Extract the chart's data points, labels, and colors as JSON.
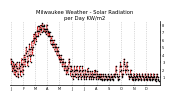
{
  "title": "Milwaukee Weather - Solar Radiation\nper Day KW/m2",
  "title_fontsize": 3.8,
  "bg_color": "#ffffff",
  "line_color": "#cc0000",
  "marker_color": "#000000",
  "grid_color": "#bbbbbb",
  "ylim": [
    0.0,
    8.5
  ],
  "ytick_values": [
    1,
    2,
    3,
    4,
    5,
    6,
    7,
    8
  ],
  "ytick_labels": [
    "1",
    "2",
    "3",
    "4",
    "5",
    "6",
    "7",
    "8"
  ],
  "values": [
    3.5,
    2.8,
    3.2,
    2.5,
    1.8,
    2.2,
    3.0,
    2.5,
    1.5,
    2.0,
    2.8,
    2.0,
    1.2,
    1.8,
    2.5,
    3.0,
    2.2,
    1.5,
    1.0,
    1.5,
    2.2,
    3.0,
    2.5,
    1.8,
    1.2,
    1.8,
    2.8,
    3.5,
    2.8,
    2.0,
    1.5,
    2.5,
    3.5,
    4.0,
    3.2,
    2.5,
    3.5,
    4.2,
    5.0,
    4.5,
    3.8,
    3.0,
    2.5,
    3.2,
    4.0,
    4.8,
    5.5,
    4.8,
    3.8,
    3.0,
    4.0,
    5.0,
    5.8,
    4.8,
    4.0,
    5.0,
    6.0,
    6.8,
    6.2,
    5.5,
    6.2,
    7.0,
    6.5,
    5.8,
    6.5,
    7.2,
    7.8,
    7.2,
    6.5,
    7.2,
    7.8,
    7.5,
    6.8,
    7.5,
    8.0,
    7.5,
    7.0,
    7.8,
    8.2,
    7.8,
    7.2,
    7.8,
    8.0,
    7.5,
    7.0,
    7.5,
    7.2,
    6.8,
    7.5,
    8.0,
    7.5,
    7.0,
    6.5,
    7.2,
    7.0,
    6.5,
    7.0,
    6.5,
    6.0,
    5.5,
    6.0,
    6.5,
    6.0,
    5.5,
    5.0,
    5.5,
    6.0,
    5.5,
    5.0,
    4.5,
    5.0,
    5.5,
    5.0,
    4.5,
    4.0,
    4.5,
    5.0,
    4.5,
    4.0,
    3.5,
    4.0,
    3.5,
    3.0,
    3.5,
    4.0,
    3.5,
    3.0,
    2.5,
    3.0,
    3.5,
    3.0,
    2.5,
    2.0,
    2.5,
    3.0,
    2.5,
    2.0,
    1.5,
    2.0,
    2.5,
    2.0,
    1.5,
    2.2,
    3.0,
    3.5,
    3.0,
    2.5,
    1.8,
    1.2,
    1.8,
    2.5,
    2.0,
    1.5,
    1.2,
    0.8,
    1.2,
    1.8,
    2.5,
    2.0,
    1.5,
    1.0,
    1.5,
    2.0,
    2.5,
    2.0,
    1.5,
    1.0,
    0.8,
    1.2,
    1.8,
    2.5,
    2.0,
    1.5,
    1.0,
    0.8,
    1.2,
    1.8,
    2.5,
    2.0,
    1.5,
    1.2,
    0.8,
    1.0,
    1.5,
    2.0,
    1.5,
    1.0,
    0.8,
    1.2,
    1.8,
    2.2,
    1.8,
    1.5,
    1.0,
    0.8,
    1.2,
    1.8,
    1.5,
    1.0,
    0.8,
    1.2,
    1.8,
    1.5,
    1.0,
    0.8,
    1.0,
    1.5,
    2.0,
    1.8,
    1.5,
    1.0,
    0.8,
    1.2,
    1.8,
    1.5,
    1.2,
    0.8,
    1.0,
    1.5,
    1.2,
    0.8,
    1.0,
    1.5,
    1.2,
    0.8,
    0.6,
    0.8,
    1.2,
    1.5,
    1.2,
    0.8,
    0.6,
    0.8,
    1.2,
    1.5,
    1.2,
    1.0,
    0.8,
    0.6,
    0.8,
    1.2,
    1.5,
    1.2,
    1.0,
    0.8,
    0.6,
    0.8,
    1.0,
    1.5,
    1.2,
    1.0,
    0.8,
    0.6,
    0.8,
    1.2,
    1.5,
    1.2,
    1.0,
    1.5,
    2.0,
    2.5,
    2.0,
    1.5,
    1.2,
    1.0,
    0.8,
    0.6,
    0.8,
    1.2,
    1.8,
    2.5,
    3.0,
    2.5,
    2.0,
    1.5,
    1.2,
    1.0,
    1.5,
    2.0,
    2.8,
    3.5,
    3.0,
    2.5,
    2.0,
    1.5,
    2.0,
    2.5,
    3.0,
    2.5,
    2.0,
    1.5,
    1.2,
    1.0,
    0.8,
    1.0,
    1.5,
    2.0,
    1.5,
    1.2,
    1.0,
    0.8,
    0.6,
    0.8,
    1.0,
    1.5,
    1.2,
    1.0,
    0.8,
    0.6,
    0.8,
    1.2,
    1.5,
    1.2,
    1.0,
    0.8,
    0.6,
    0.8,
    1.2,
    1.5,
    1.2,
    1.0,
    0.8,
    0.6,
    0.8,
    1.2,
    1.5,
    1.2,
    1.0,
    0.8,
    0.6,
    0.8,
    1.0,
    1.5,
    1.2,
    1.0,
    0.8,
    0.6,
    0.8,
    1.0,
    1.5,
    1.2,
    1.0,
    0.8,
    0.6,
    0.8,
    1.0,
    1.5,
    1.2,
    1.0,
    0.8,
    0.6,
    0.8,
    1.0,
    1.5,
    1.2,
    1.0,
    0.8,
    0.6,
    0.5,
    0.8,
    1.0,
    1.5,
    1.2,
    1.0,
    0.8,
    0.6,
    0.5
  ],
  "num_points": 367,
  "month_tick_positions": [
    0,
    31,
    59,
    90,
    120,
    151,
    181,
    212,
    243,
    273,
    304,
    334
  ],
  "month_labels": [
    "J",
    "F",
    "M",
    "A",
    "M",
    "J",
    "J",
    "A",
    "S",
    "O",
    "N",
    "D"
  ]
}
